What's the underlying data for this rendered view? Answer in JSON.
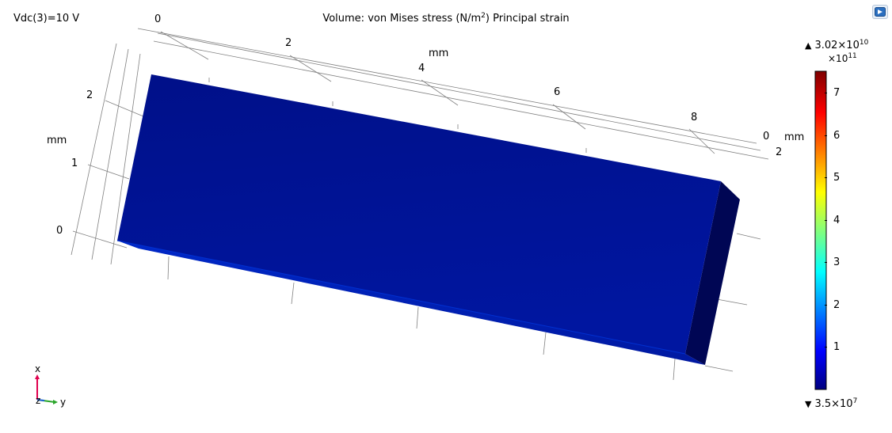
{
  "title": {
    "prefix": "Volume: von Mises stress (N/m",
    "superscript": "2",
    "suffix": ") Principal strain"
  },
  "parameter": "Vdc(3)=10 V",
  "axes": {
    "y_ticks": [
      "0",
      "2",
      "4",
      "6",
      "8"
    ],
    "y_unit": "mm",
    "x_ticks": [
      "0",
      "1",
      "2"
    ],
    "x_unit": "mm",
    "z_ticks": [
      "0",
      "2"
    ],
    "z_unit": "mm"
  },
  "legend": {
    "max_prefix": "3.02×10",
    "max_exp": "10",
    "min_prefix": "3.5×10",
    "min_exp": "7",
    "multiplier_prefix": "×10",
    "multiplier_exp": "11",
    "ticks": [
      "7",
      "6",
      "5",
      "4",
      "3",
      "2",
      "1"
    ],
    "max_symbol": "▲",
    "min_symbol": "▼"
  },
  "triad": {
    "x_label": "x",
    "y_label": "y",
    "z_label": "z"
  },
  "colors": {
    "block_face": "#00108a",
    "block_bottom": "#0028c8",
    "block_side": "#000650",
    "axis_x": "#e0004e",
    "axis_y": "#2aa52a",
    "axis_z": "#2060d8"
  },
  "toolbar": {
    "view_icon": "render-view-icon"
  }
}
